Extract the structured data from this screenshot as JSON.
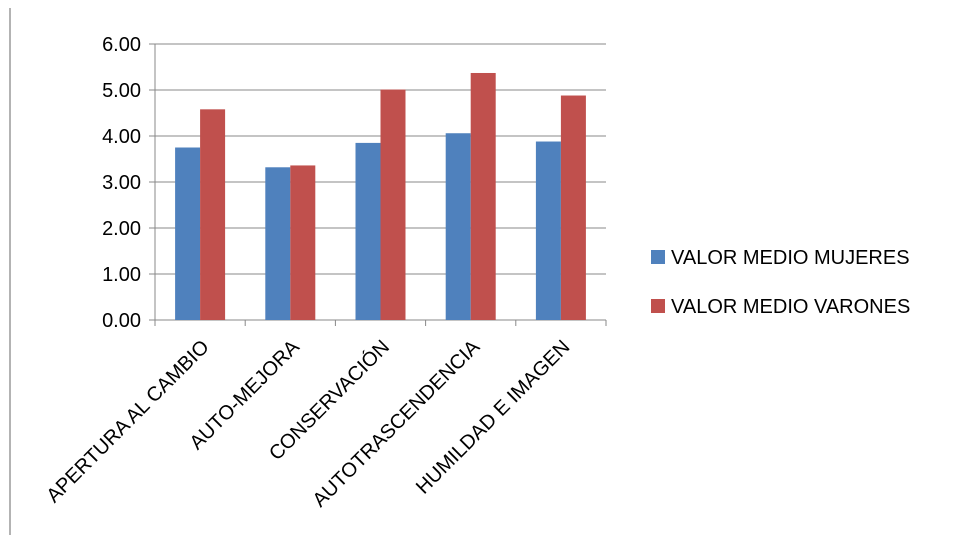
{
  "chart_data": {
    "type": "bar",
    "title": "",
    "xlabel": "",
    "ylabel": "",
    "categories": [
      "APERTURA AL CAMBIO",
      "AUTO-MEJORA",
      "CONSERVACIÓN",
      "AUTOTRASCENDENCIA",
      "HUMILDAD E IMAGEN"
    ],
    "series": [
      {
        "name": "VALOR MEDIO MUJERES",
        "color": "#4F81BD",
        "values": [
          3.75,
          3.32,
          3.85,
          4.06,
          3.88
        ]
      },
      {
        "name": "VALOR MEDIO VARONES",
        "color": "#C0504D",
        "values": [
          4.58,
          3.36,
          5.01,
          5.37,
          4.88
        ]
      }
    ],
    "ylim": [
      0,
      6
    ],
    "yticks": [
      "0.00",
      "1.00",
      "2.00",
      "3.00",
      "4.00",
      "5.00",
      "6.00"
    ],
    "grid": true,
    "legend_position": "right"
  }
}
